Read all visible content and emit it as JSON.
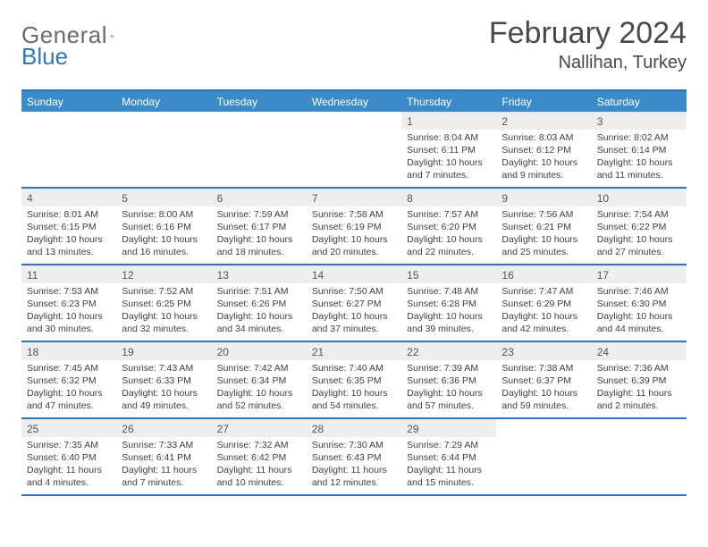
{
  "brand": {
    "word1": "General",
    "word2": "Blue",
    "accent": "#2f78bd",
    "gray": "#6b6b6b"
  },
  "title": "February 2024",
  "subtitle": "Nallihan, Turkey",
  "colors": {
    "headerBar": "#3b8bc9",
    "rowRule": "#2f78bd",
    "dayNumBg": "#eceef0",
    "text": "#3a3a3a"
  },
  "weekdays": [
    "Sunday",
    "Monday",
    "Tuesday",
    "Wednesday",
    "Thursday",
    "Friday",
    "Saturday"
  ],
  "weeks": [
    [
      {
        "n": "",
        "sr": "",
        "ss": "",
        "dl": ""
      },
      {
        "n": "",
        "sr": "",
        "ss": "",
        "dl": ""
      },
      {
        "n": "",
        "sr": "",
        "ss": "",
        "dl": ""
      },
      {
        "n": "",
        "sr": "",
        "ss": "",
        "dl": ""
      },
      {
        "n": "1",
        "sr": "8:04 AM",
        "ss": "6:11 PM",
        "dl": "10 hours and 7 minutes."
      },
      {
        "n": "2",
        "sr": "8:03 AM",
        "ss": "6:12 PM",
        "dl": "10 hours and 9 minutes."
      },
      {
        "n": "3",
        "sr": "8:02 AM",
        "ss": "6:14 PM",
        "dl": "10 hours and 11 minutes."
      }
    ],
    [
      {
        "n": "4",
        "sr": "8:01 AM",
        "ss": "6:15 PM",
        "dl": "10 hours and 13 minutes."
      },
      {
        "n": "5",
        "sr": "8:00 AM",
        "ss": "6:16 PM",
        "dl": "10 hours and 16 minutes."
      },
      {
        "n": "6",
        "sr": "7:59 AM",
        "ss": "6:17 PM",
        "dl": "10 hours and 18 minutes."
      },
      {
        "n": "7",
        "sr": "7:58 AM",
        "ss": "6:19 PM",
        "dl": "10 hours and 20 minutes."
      },
      {
        "n": "8",
        "sr": "7:57 AM",
        "ss": "6:20 PM",
        "dl": "10 hours and 22 minutes."
      },
      {
        "n": "9",
        "sr": "7:56 AM",
        "ss": "6:21 PM",
        "dl": "10 hours and 25 minutes."
      },
      {
        "n": "10",
        "sr": "7:54 AM",
        "ss": "6:22 PM",
        "dl": "10 hours and 27 minutes."
      }
    ],
    [
      {
        "n": "11",
        "sr": "7:53 AM",
        "ss": "6:23 PM",
        "dl": "10 hours and 30 minutes."
      },
      {
        "n": "12",
        "sr": "7:52 AM",
        "ss": "6:25 PM",
        "dl": "10 hours and 32 minutes."
      },
      {
        "n": "13",
        "sr": "7:51 AM",
        "ss": "6:26 PM",
        "dl": "10 hours and 34 minutes."
      },
      {
        "n": "14",
        "sr": "7:50 AM",
        "ss": "6:27 PM",
        "dl": "10 hours and 37 minutes."
      },
      {
        "n": "15",
        "sr": "7:48 AM",
        "ss": "6:28 PM",
        "dl": "10 hours and 39 minutes."
      },
      {
        "n": "16",
        "sr": "7:47 AM",
        "ss": "6:29 PM",
        "dl": "10 hours and 42 minutes."
      },
      {
        "n": "17",
        "sr": "7:46 AM",
        "ss": "6:30 PM",
        "dl": "10 hours and 44 minutes."
      }
    ],
    [
      {
        "n": "18",
        "sr": "7:45 AM",
        "ss": "6:32 PM",
        "dl": "10 hours and 47 minutes."
      },
      {
        "n": "19",
        "sr": "7:43 AM",
        "ss": "6:33 PM",
        "dl": "10 hours and 49 minutes."
      },
      {
        "n": "20",
        "sr": "7:42 AM",
        "ss": "6:34 PM",
        "dl": "10 hours and 52 minutes."
      },
      {
        "n": "21",
        "sr": "7:40 AM",
        "ss": "6:35 PM",
        "dl": "10 hours and 54 minutes."
      },
      {
        "n": "22",
        "sr": "7:39 AM",
        "ss": "6:36 PM",
        "dl": "10 hours and 57 minutes."
      },
      {
        "n": "23",
        "sr": "7:38 AM",
        "ss": "6:37 PM",
        "dl": "10 hours and 59 minutes."
      },
      {
        "n": "24",
        "sr": "7:36 AM",
        "ss": "6:39 PM",
        "dl": "11 hours and 2 minutes."
      }
    ],
    [
      {
        "n": "25",
        "sr": "7:35 AM",
        "ss": "6:40 PM",
        "dl": "11 hours and 4 minutes."
      },
      {
        "n": "26",
        "sr": "7:33 AM",
        "ss": "6:41 PM",
        "dl": "11 hours and 7 minutes."
      },
      {
        "n": "27",
        "sr": "7:32 AM",
        "ss": "6:42 PM",
        "dl": "11 hours and 10 minutes."
      },
      {
        "n": "28",
        "sr": "7:30 AM",
        "ss": "6:43 PM",
        "dl": "11 hours and 12 minutes."
      },
      {
        "n": "29",
        "sr": "7:29 AM",
        "ss": "6:44 PM",
        "dl": "11 hours and 15 minutes."
      },
      {
        "n": "",
        "sr": "",
        "ss": "",
        "dl": ""
      },
      {
        "n": "",
        "sr": "",
        "ss": "",
        "dl": ""
      }
    ]
  ],
  "labels": {
    "sunrise": "Sunrise: ",
    "sunset": "Sunset: ",
    "daylight": "Daylight: "
  }
}
